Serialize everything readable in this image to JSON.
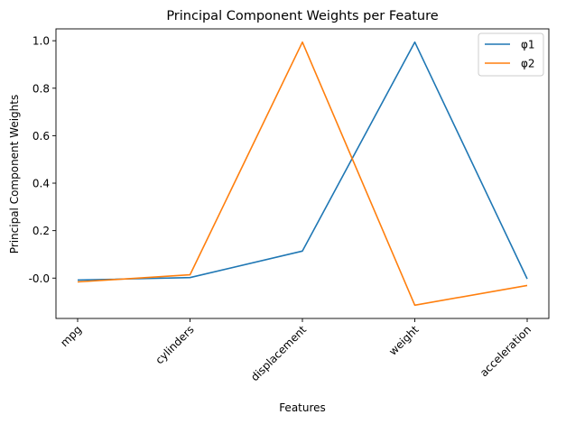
{
  "chart_data": {
    "type": "line",
    "title": "Principal Component Weights per Feature",
    "xlabel": "Features",
    "ylabel": "Principal Component Weights",
    "categories": [
      "mpg",
      "cylinders",
      "displacement",
      "weight",
      "acceleration"
    ],
    "series": [
      {
        "name": "φ1",
        "color": "#1f77b4",
        "values": [
          -0.008,
          0.002,
          0.114,
          0.994,
          -0.003
        ]
      },
      {
        "name": "φ2",
        "color": "#ff7f0e",
        "values": [
          -0.016,
          0.014,
          0.994,
          -0.114,
          -0.031
        ]
      }
    ],
    "ylim": [
      -0.17,
      1.05
    ],
    "yticks": [
      "-0.0",
      "0.2",
      "0.4",
      "0.6",
      "0.8",
      "1.0"
    ],
    "grid": false,
    "legend_position": "top-right"
  }
}
